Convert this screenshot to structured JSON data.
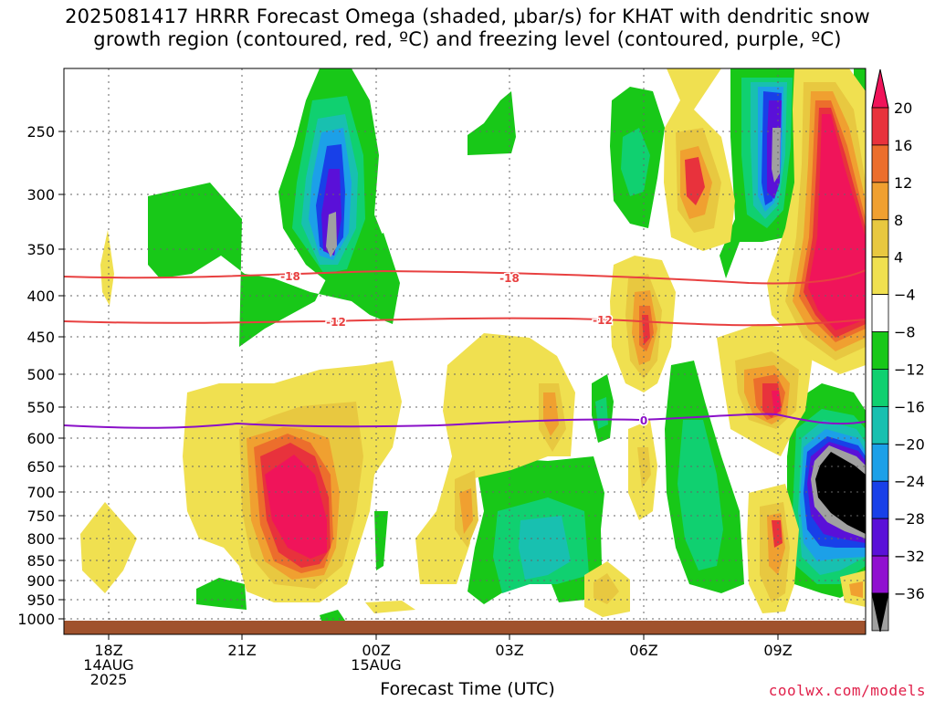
{
  "chart_data": {
    "type": "heatmap",
    "title": "2025081417 HRRR Forecast Omega (shaded, μbar/s) for KHAT with dendritic snow\ngrowth region (contoured, red, ºC) and freezing level (contoured, purple, ºC)",
    "xlabel": "Forecast Time (UTC)",
    "ylabel": "",
    "x_ticks": [
      {
        "label": "18Z",
        "date": "14AUG",
        "year": "2025"
      },
      {
        "label": "21Z",
        "date": "",
        "year": ""
      },
      {
        "label": "00Z",
        "date": "15AUG",
        "year": ""
      },
      {
        "label": "03Z",
        "date": "",
        "year": ""
      },
      {
        "label": "06Z",
        "date": "",
        "year": ""
      },
      {
        "label": "09Z",
        "date": "",
        "year": ""
      }
    ],
    "y_ticks": [
      "250",
      "300",
      "350",
      "400",
      "450",
      "500",
      "550",
      "600",
      "650",
      "700",
      "750",
      "800",
      "850",
      "900",
      "950",
      "1000"
    ],
    "y_scale": "log-pressure",
    "grid": "dotted",
    "colorbar": {
      "levels": [
        "20",
        "16",
        "12",
        "8",
        "4",
        "−4",
        "−8",
        "−12",
        "−16",
        "−20",
        "−24",
        "−28",
        "−32",
        "−36"
      ],
      "colors": [
        "#f0145a",
        "#e8323c",
        "#ec6e2c",
        "#f0a030",
        "#e8c840",
        "#f0e050",
        "#ffffff",
        "#18c818",
        "#10d070",
        "#18c0b0",
        "#1ca0e8",
        "#1840e8",
        "#5a10d8",
        "#9010d0",
        "#a0a0a0",
        "#000000"
      ],
      "extend": "both"
    },
    "contours": [
      {
        "name": "-18",
        "color": "#e84040",
        "kind": "dendritic snow growth"
      },
      {
        "name": "-12",
        "color": "#e84040",
        "kind": "dendritic snow growth"
      },
      {
        "name": "0",
        "color": "#8a10c8",
        "kind": "freezing level"
      }
    ]
  },
  "credit": "coolwx.com/models"
}
